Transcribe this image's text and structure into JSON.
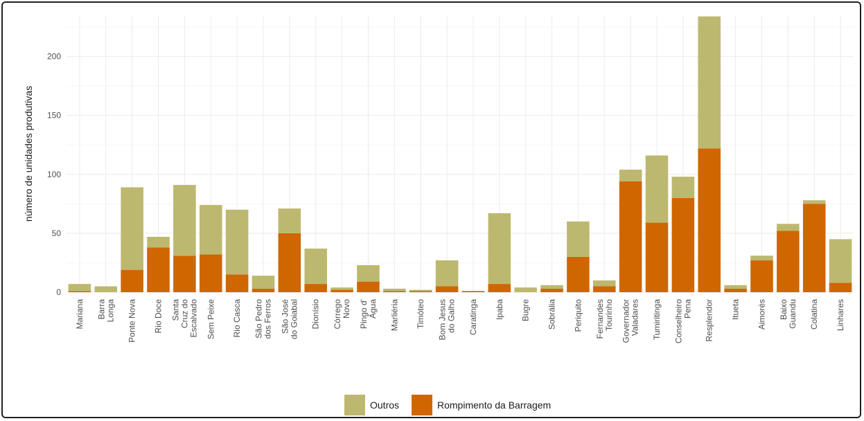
{
  "chart_data": {
    "type": "bar",
    "stacked": true,
    "title": "",
    "xlabel": "",
    "ylabel": "número de unidades produtivas",
    "ylim": [
      0,
      235
    ],
    "yticks": [
      0,
      50,
      100,
      150,
      200
    ],
    "grid": true,
    "legend_position": "bottom",
    "categories": [
      "Mariana",
      "Barra\nLonga",
      "Ponte Nova",
      "Rio Doce",
      "Santa\nCruz do\nEscalvado",
      "Sem Peixe",
      "Rio Casca",
      "São Pedro\ndos Ferros",
      "São José\ndo Goiabal",
      "Dionísio",
      "Córrego\nNovo",
      "Pingo d'\nÁgua",
      "Marliéria",
      "Timóteo",
      "Bom Jesus\ndo Galho",
      "Caratinga",
      "Ipaba",
      "Bugre",
      "Sobrália",
      "Periquito",
      "Fernandes\nTourinho",
      "Governador\nValadares",
      "Tumiritinga",
      "Conselheiro\nPena",
      "Resplendor",
      "Itueta",
      "Aimorés",
      "Baixo\nGuandu",
      "Colatina",
      "Linhares"
    ],
    "series": [
      {
        "name": "Rompimento da Barragem",
        "color": "#d06600",
        "values": [
          1,
          0,
          19,
          38,
          31,
          32,
          15,
          3,
          50,
          7,
          2,
          9,
          1,
          1,
          5,
          1,
          7,
          0,
          3,
          30,
          5,
          94,
          59,
          80,
          122,
          3,
          27,
          52,
          75,
          8
        ]
      },
      {
        "name": "Outros",
        "color": "#bdb86f",
        "values": [
          6,
          5,
          70,
          9,
          60,
          42,
          55,
          11,
          21,
          30,
          2,
          14,
          2,
          1,
          22,
          0,
          60,
          4,
          3,
          30,
          5,
          10,
          57,
          18,
          112,
          3,
          4,
          6,
          3,
          37
        ]
      }
    ],
    "legend": [
      {
        "label": "Outros",
        "color": "#bdb86f"
      },
      {
        "label": "Rompimento da Barragem",
        "color": "#d06600"
      }
    ]
  }
}
